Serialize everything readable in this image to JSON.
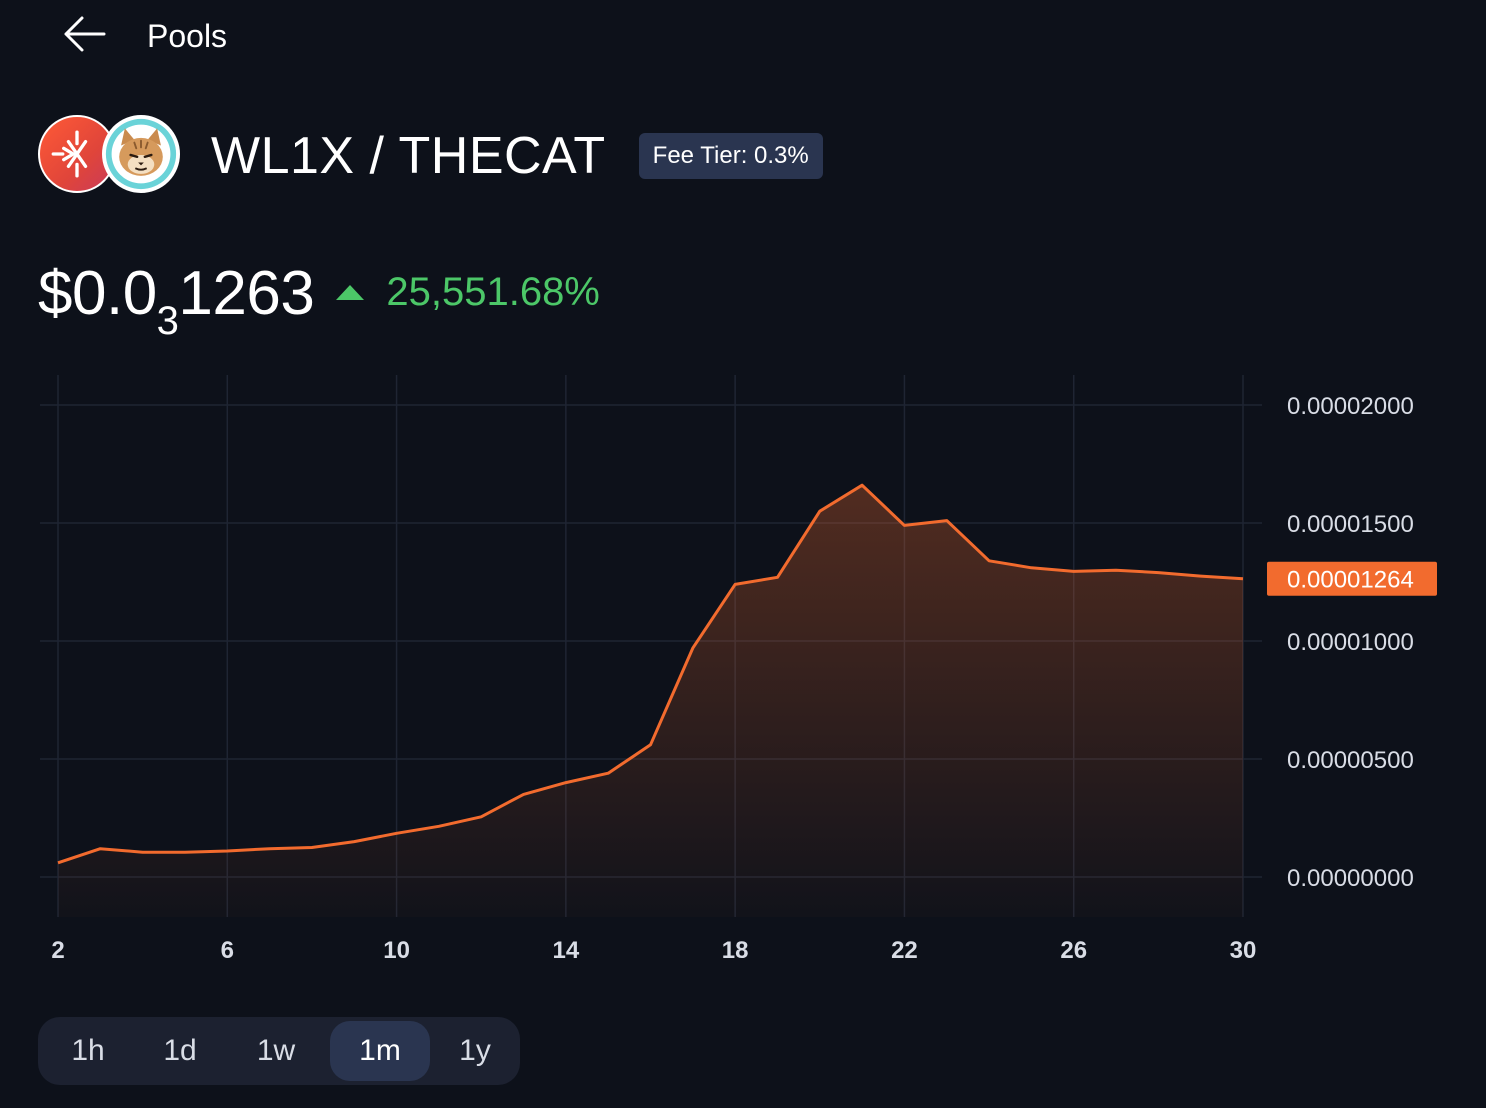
{
  "nav": {
    "back_label": "Pools"
  },
  "pool": {
    "token_a": "WL1X",
    "token_b": "THECAT",
    "title": "WL1X / THECAT",
    "fee_tier": "Fee Tier: 0.3%"
  },
  "price": {
    "prefix": "$0.0",
    "zero_count": "3",
    "digits": "1263",
    "change": "25,551.68%",
    "change_direction": "up"
  },
  "colors": {
    "background": "#0d111a",
    "accent": "#f26b2e",
    "positive": "#4cc768",
    "badge": "#2a3550"
  },
  "ranges": [
    "1h",
    "1d",
    "1w",
    "1m",
    "1y"
  ],
  "active_range": "1m",
  "chart_data": {
    "type": "area",
    "x": [
      2,
      3,
      4,
      5,
      6,
      7,
      8,
      9,
      10,
      11,
      12,
      13,
      14,
      15,
      16,
      17,
      18,
      19,
      20,
      21,
      22,
      23,
      24,
      25,
      26,
      27,
      28,
      29,
      30
    ],
    "values": [
      6e-07,
      1.2e-06,
      1.05e-06,
      1.05e-06,
      1.1e-06,
      1.2e-06,
      1.25e-06,
      1.5e-06,
      1.85e-06,
      2.15e-06,
      2.55e-06,
      3.5e-06,
      4e-06,
      4.4e-06,
      5.6e-06,
      9.7e-06,
      1.24e-05,
      1.27e-05,
      1.55e-05,
      1.66e-05,
      1.49e-05,
      1.51e-05,
      1.34e-05,
      1.31e-05,
      1.295e-05,
      1.3e-05,
      1.29e-05,
      1.275e-05,
      1.264e-05
    ],
    "x_ticks": [
      "2",
      "6",
      "10",
      "14",
      "18",
      "22",
      "26",
      "30"
    ],
    "y_ticks": [
      "0.00000000",
      "0.00000500",
      "0.00001000",
      "0.00001500",
      "0.00002000"
    ],
    "ylim": [
      0,
      2e-05
    ],
    "current_label": "0.00001264",
    "grid": true
  }
}
